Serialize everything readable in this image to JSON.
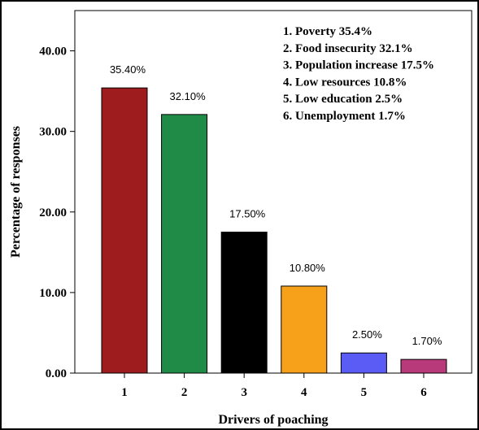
{
  "chart_data": {
    "type": "bar",
    "categories": [
      "1",
      "2",
      "3",
      "4",
      "5",
      "6"
    ],
    "values": [
      35.4,
      32.1,
      17.5,
      10.8,
      2.5,
      1.7
    ],
    "data_labels": [
      "35.40%",
      "32.10%",
      "17.50%",
      "10.80%",
      "2.50%",
      "1.70%"
    ],
    "colors": [
      "#9e1b1e",
      "#1f8b46",
      "#000000",
      "#f7a11a",
      "#5b5bf5",
      "#b83a7a"
    ],
    "xlabel": "Drivers of poaching",
    "ylabel": "Percentage of responses",
    "ylim": [
      0,
      45
    ],
    "yticks": [
      0,
      10,
      20,
      30,
      40
    ],
    "ytick_labels": [
      "0.00",
      "10.00",
      "20.00",
      "30.00",
      "40.00"
    ],
    "grid": false,
    "legend_placement": "top-right",
    "legend": [
      "1. Poverty 35.4%",
      "2. Food insecurity 32.1%",
      "3. Population increase 17.5%",
      "4. Low resources 10.8%",
      "5. Low education 2.5%",
      "6. Unemployment 1.7%"
    ]
  }
}
